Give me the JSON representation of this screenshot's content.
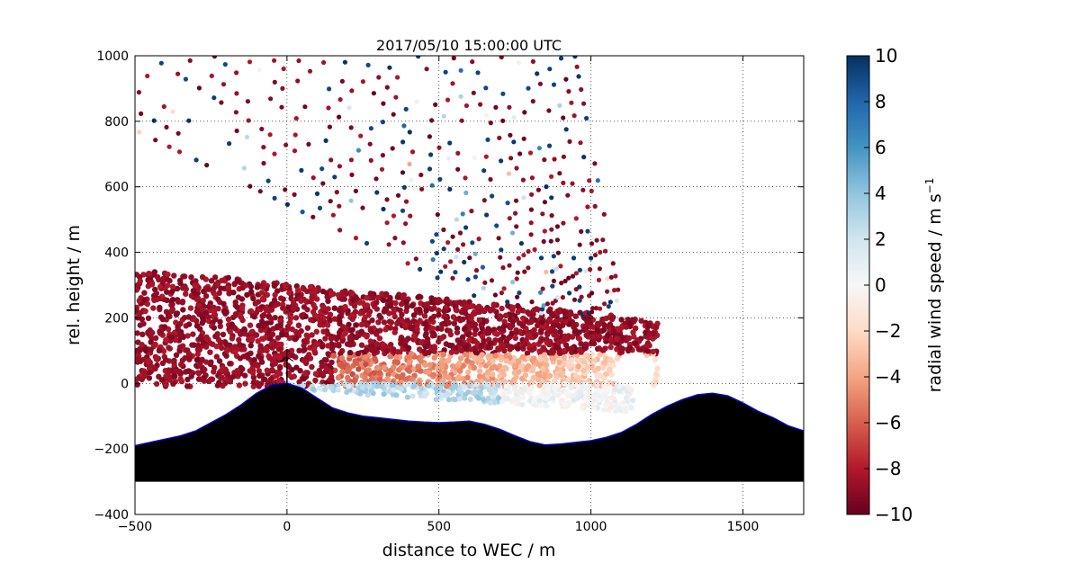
{
  "chart_data": {
    "type": "scatter",
    "title": "2017/05/10 15:00:00 UTC",
    "xlabel": "distance to WEC / m",
    "ylabel": "rel. height / m",
    "xlim": [
      -500,
      1700
    ],
    "ylim": [
      -400,
      1000
    ],
    "xticks": [
      -500,
      0,
      500,
      1000,
      1500
    ],
    "yticks": [
      -400,
      -200,
      0,
      200,
      400,
      600,
      800,
      1000
    ],
    "xtick_labels": [
      "−500",
      "0",
      "500",
      "1000",
      "1500"
    ],
    "ytick_labels": [
      "−400",
      "−200",
      "0",
      "200",
      "400",
      "600",
      "800",
      "1000"
    ],
    "grid": true,
    "colorbar": {
      "label_main": "radial wind speed / m s",
      "label_sup": "−1",
      "range": [
        -10,
        10
      ],
      "ticks": [
        10,
        8,
        6,
        4,
        2,
        0,
        -2,
        -4,
        -6,
        -8,
        -10
      ],
      "tick_labels": [
        "10",
        "8",
        "6",
        "4",
        "2",
        "0",
        "−2",
        "−4",
        "−6",
        "−8",
        "−10"
      ],
      "colormap": "RdBu",
      "colors": [
        "#67001f",
        "#b2182b",
        "#d6604d",
        "#f4a582",
        "#fddbc7",
        "#f7f7f7",
        "#d1e5f0",
        "#92c5de",
        "#4393c3",
        "#2166ac",
        "#053061"
      ]
    },
    "terrain": {
      "fill": "#000000",
      "outline": "#0000cc",
      "x": [
        -500,
        -450,
        -400,
        -350,
        -300,
        -250,
        -200,
        -150,
        -100,
        -50,
        0,
        50,
        100,
        150,
        200,
        250,
        300,
        350,
        400,
        450,
        500,
        550,
        600,
        650,
        700,
        750,
        800,
        850,
        900,
        950,
        1000,
        1050,
        1100,
        1150,
        1200,
        1250,
        1300,
        1350,
        1400,
        1450,
        1500,
        1550,
        1600,
        1650,
        1700
      ],
      "y": [
        -190,
        -180,
        -170,
        -160,
        -145,
        -120,
        -95,
        -65,
        -30,
        -5,
        0,
        -15,
        -45,
        -75,
        -90,
        -100,
        -105,
        -110,
        -115,
        -118,
        -120,
        -118,
        -115,
        -125,
        -140,
        -160,
        -178,
        -188,
        -185,
        -180,
        -175,
        -165,
        -150,
        -125,
        -95,
        -70,
        -50,
        -35,
        -30,
        -38,
        -60,
        -85,
        -105,
        -130,
        -145
      ],
      "base": -300
    },
    "turbine": {
      "x": 0,
      "hub_height": 80,
      "rotor_radius": 40
    }
  }
}
